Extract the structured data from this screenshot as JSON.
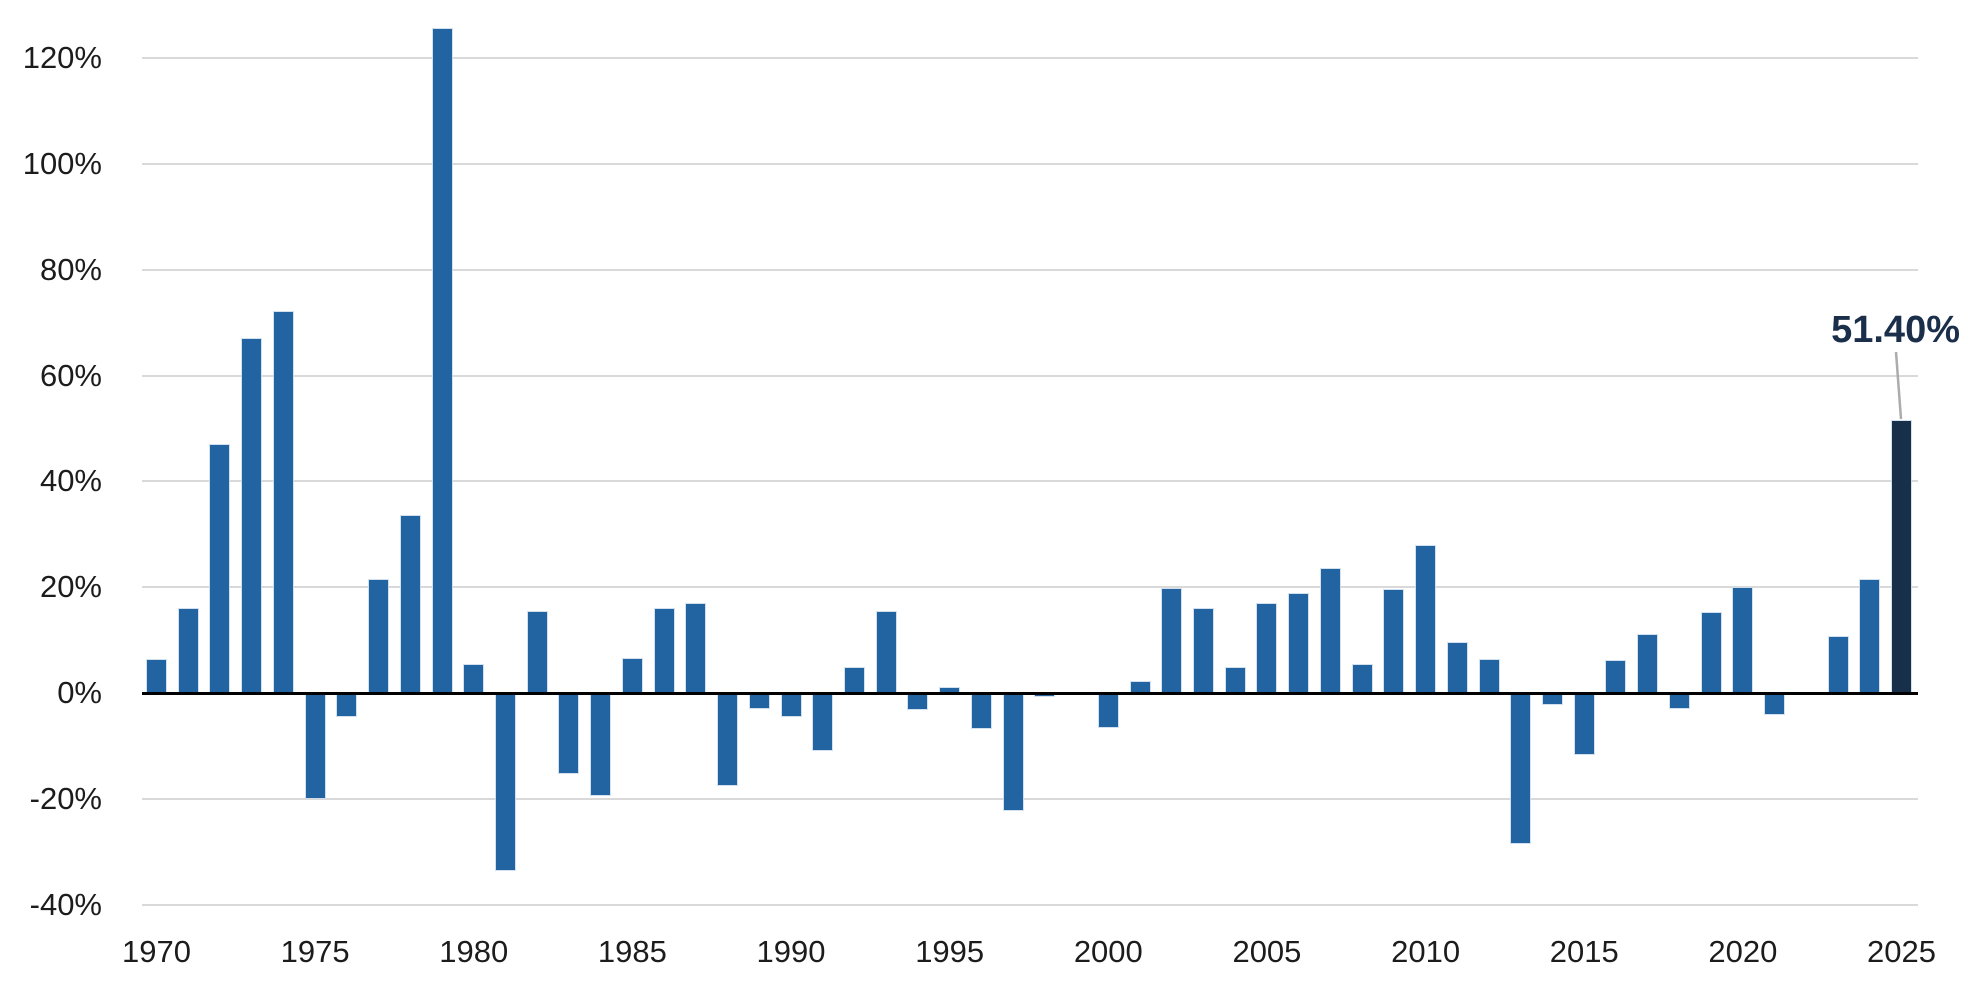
{
  "chart_data": {
    "type": "bar",
    "title": "",
    "unit": "percent",
    "start_year": 1970,
    "categories": [
      1970,
      1971,
      1972,
      1973,
      1974,
      1975,
      1976,
      1977,
      1978,
      1979,
      1980,
      1981,
      1982,
      1983,
      1984,
      1985,
      1986,
      1987,
      1988,
      1989,
      1990,
      1991,
      1992,
      1993,
      1994,
      1995,
      1996,
      1997,
      1998,
      1999,
      2000,
      2001,
      2002,
      2003,
      2004,
      2005,
      2006,
      2007,
      2008,
      2009,
      2010,
      2011,
      2012,
      2013,
      2014,
      2015,
      2016,
      2017,
      2018,
      2019,
      2020,
      2021,
      2022,
      2023,
      2024,
      2025
    ],
    "values": [
      6.3,
      15.9,
      46.8,
      66.9,
      72.1,
      -19.9,
      -4.4,
      21.3,
      33.4,
      125.5,
      5.2,
      -33.5,
      15.4,
      -15.1,
      -19.3,
      6.4,
      15.8,
      16.9,
      -17.3,
      -2.9,
      -4.3,
      -10.8,
      4.7,
      15.3,
      -3.1,
      1.0,
      -6.7,
      -22.1,
      -0.5,
      0,
      -6.4,
      2.0,
      19.6,
      15.9,
      4.8,
      16.8,
      18.7,
      23.4,
      5.3,
      19.5,
      27.7,
      9.4,
      6.3,
      -28.4,
      -2.0,
      -11.6,
      6.1,
      10.9,
      -2.8,
      15.2,
      19.9,
      -4.0,
      0,
      10.5,
      21.3,
      51.4
    ],
    "highlight_year": 2025,
    "annotation": {
      "text": "51.40%",
      "target_year": 2025
    },
    "y_ticks": [
      {
        "label": "120%",
        "value": 120
      },
      {
        "label": "100%",
        "value": 100
      },
      {
        "label": "80%",
        "value": 80
      },
      {
        "label": "60%",
        "value": 60
      },
      {
        "label": "40%",
        "value": 40
      },
      {
        "label": "20%",
        "value": 20
      },
      {
        "label": "0%",
        "value": 0
      },
      {
        "label": "-20%",
        "value": -20
      },
      {
        "label": "-40%",
        "value": -40
      }
    ],
    "x_ticks": [
      {
        "label": "1970",
        "year": 1970
      },
      {
        "label": "1975",
        "year": 1975
      },
      {
        "label": "1980",
        "year": 1980
      },
      {
        "label": "1985",
        "year": 1985
      },
      {
        "label": "1990",
        "year": 1990
      },
      {
        "label": "1995",
        "year": 1995
      },
      {
        "label": "2000",
        "year": 2000
      },
      {
        "label": "2005",
        "year": 2005
      },
      {
        "label": "2010",
        "year": 2010
      },
      {
        "label": "2015",
        "year": 2015
      },
      {
        "label": "2020",
        "year": 2020
      },
      {
        "label": "2025",
        "year": 2025
      }
    ],
    "ylim": [
      -40,
      130
    ],
    "grid": "horizontal",
    "legend": "none"
  },
  "colors": {
    "bar": "#2263a2",
    "highlight_bar": "#172f49",
    "annotation_text": "#1b2f4b",
    "gridline": "#d9d9d9",
    "zero_line": "#000000",
    "tick_text": "#1c1c1c",
    "leader_line": "#acacac"
  }
}
